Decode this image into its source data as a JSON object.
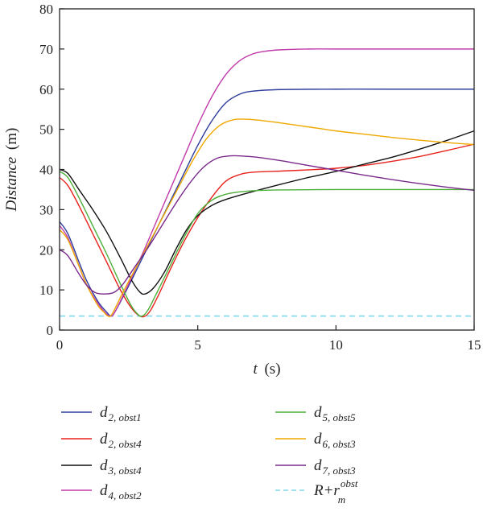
{
  "chart_data": {
    "type": "line",
    "xlabel": {
      "var": "t",
      "unit": "(s)"
    },
    "ylabel": {
      "var": "Distance",
      "unit": "(m)"
    },
    "xlim": [
      0,
      15
    ],
    "ylim": [
      0,
      80
    ],
    "xticks": [
      0,
      5,
      10,
      15
    ],
    "yticks": [
      0,
      10,
      20,
      30,
      40,
      50,
      60,
      70,
      80
    ],
    "grid": false,
    "legend_placement": "bottom",
    "series": [
      {
        "name": "d",
        "sub": "2, obst1",
        "color": "#2e3d9c",
        "x": [
          0,
          0.3,
          0.7,
          1.0,
          1.4,
          1.7,
          1.85,
          2.0,
          2.5,
          3.0,
          3.5,
          4.0,
          4.5,
          5.0,
          5.5,
          6.0,
          6.5,
          7.0,
          8.0,
          10.0,
          12.0,
          15.0
        ],
        "y": [
          27,
          24,
          17,
          12,
          7,
          4.5,
          3.5,
          4.5,
          11,
          18,
          25,
          32,
          39,
          46,
          52,
          56.5,
          58.7,
          59.5,
          59.9,
          60,
          60,
          60
        ]
      },
      {
        "name": "d",
        "sub": "2, obst4",
        "color": "#e8221c",
        "x": [
          0,
          0.3,
          0.7,
          1.2,
          1.7,
          2.2,
          2.6,
          2.9,
          3.1,
          3.3,
          3.6,
          4.0,
          4.5,
          5.0,
          5.5,
          6.0,
          6.5,
          7.0,
          8.0,
          9.0,
          10.0,
          11.0,
          12.0,
          13.0,
          14.0,
          15.0
        ],
        "y": [
          38,
          36,
          31,
          24,
          17,
          10,
          5.5,
          3.5,
          3.5,
          5,
          9,
          15,
          22,
          28,
          33,
          37,
          38.7,
          39.3,
          39.6,
          39.9,
          40.3,
          41,
          42,
          43.2,
          44.7,
          46.3
        ]
      },
      {
        "name": "d",
        "sub": "3, obst4",
        "color": "#111111",
        "x": [
          0,
          0.3,
          0.7,
          1.2,
          1.7,
          2.2,
          2.6,
          2.9,
          3.1,
          3.4,
          3.8,
          4.2,
          4.6,
          5.0,
          5.5,
          6.0,
          7.0,
          8.0,
          9.0,
          10.0,
          11.0,
          12.0,
          13.0,
          14.0,
          15.0
        ],
        "y": [
          40,
          39,
          35,
          30,
          24.5,
          18,
          12.5,
          9.5,
          9,
          10.5,
          14.5,
          20,
          25,
          28.5,
          31,
          32.5,
          34.5,
          36.3,
          38,
          39.5,
          41.3,
          43,
          45,
          47.2,
          49.6
        ]
      },
      {
        "name": "d",
        "sub": "4, obst2",
        "color": "#c03aab",
        "x": [
          0,
          0.3,
          0.7,
          1.0,
          1.4,
          1.7,
          1.85,
          2.0,
          2.5,
          3.0,
          3.5,
          4.0,
          4.5,
          5.0,
          5.5,
          6.0,
          6.5,
          7.0,
          7.5,
          8.0,
          9.0,
          10.0,
          12.0,
          15.0
        ],
        "y": [
          26,
          23,
          16,
          11,
          6.5,
          4,
          3.5,
          4.5,
          11.5,
          19,
          27,
          35,
          43,
          51,
          58,
          63.5,
          67,
          68.8,
          69.5,
          69.8,
          70,
          70,
          70,
          70
        ]
      },
      {
        "name": "d",
        "sub": "5, obst5",
        "color": "#4caf38",
        "x": [
          0,
          0.3,
          0.7,
          1.2,
          1.7,
          2.2,
          2.6,
          2.85,
          3.0,
          3.2,
          3.5,
          4.0,
          4.5,
          5.0,
          5.5,
          6.0,
          6.5,
          7.0,
          8.0,
          10.0,
          12.0,
          15.0
        ],
        "y": [
          39.5,
          38,
          33,
          26,
          19,
          11.5,
          6,
          3.8,
          3.5,
          5,
          9,
          16,
          23,
          29,
          32.3,
          33.8,
          34.4,
          34.7,
          34.9,
          35,
          35,
          35
        ]
      },
      {
        "name": "d",
        "sub": "6, obst3",
        "color": "#f0a800",
        "x": [
          0,
          0.3,
          0.7,
          1.0,
          1.4,
          1.6,
          1.75,
          1.9,
          2.3,
          2.8,
          3.3,
          3.8,
          4.3,
          4.8,
          5.3,
          5.8,
          6.3,
          6.8,
          7.3,
          8.0,
          9.0,
          10.0,
          11.0,
          12.0,
          13.0,
          14.0,
          15.0
        ],
        "y": [
          25,
          22.5,
          16,
          11,
          6,
          4.5,
          3.5,
          4,
          9.5,
          16,
          22.5,
          29,
          35.5,
          42,
          47.5,
          51,
          52.4,
          52.5,
          52.2,
          51.6,
          50.6,
          49.6,
          48.8,
          48,
          47.3,
          46.7,
          46.2
        ]
      },
      {
        "name": "d",
        "sub": "7, obst3",
        "color": "#7a2a8c",
        "x": [
          0,
          0.3,
          0.7,
          1.0,
          1.3,
          1.7,
          2.0,
          2.3,
          2.7,
          3.2,
          3.7,
          4.2,
          4.7,
          5.2,
          5.7,
          6.2,
          6.7,
          7.2,
          8.0,
          9.0,
          10.0,
          11.0,
          12.0,
          13.0,
          14.0,
          15.0
        ],
        "y": [
          20,
          18.5,
          14,
          11,
          9.3,
          9,
          9.5,
          11.5,
          15.5,
          20.5,
          26,
          31.5,
          36.5,
          40.5,
          42.8,
          43.4,
          43.3,
          43,
          42.2,
          41,
          39.8,
          38.6,
          37.5,
          36.5,
          35.6,
          34.8
        ]
      }
    ],
    "threshold": {
      "name": "R+r",
      "sup": "obst",
      "sub": "m",
      "color": "#7fd8e8",
      "value": 3.5
    }
  }
}
